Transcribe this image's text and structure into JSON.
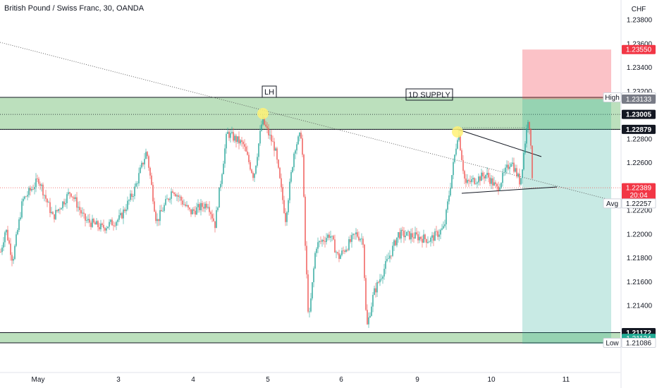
{
  "chart_data": {
    "type": "candlestick",
    "title": "British Pound / Swiss Franc, 30, OANDA",
    "currency": "CHF",
    "y_range": [
      1.2105,
      1.2383
    ],
    "y_ticks": [
      1.214,
      1.216,
      1.218,
      1.22,
      1.222,
      1.224,
      1.226,
      1.228,
      1.232,
      1.234,
      1.236,
      1.238
    ],
    "x_labels": [
      "May",
      "3",
      "4",
      "5",
      "6",
      "9",
      "10",
      "11"
    ],
    "zones": [
      {
        "name": "supply",
        "label": "1D SUPPLY",
        "from": 1.22879,
        "to": 1.23148,
        "color": "#a5d6a7"
      },
      {
        "name": "demand",
        "label": "",
        "from": 1.21086,
        "to": 1.21172,
        "color": "#a5d6a7"
      }
    ],
    "annotations": [
      {
        "name": "lh",
        "text": "LH"
      }
    ],
    "price_labels": [
      {
        "name": "tp",
        "value": 1.2355,
        "text": "1.23550",
        "bg": "#f23645",
        "fg": "#ffffff"
      },
      {
        "name": "high",
        "value": 1.23148,
        "text": "1.23148",
        "tag": "High",
        "bg": "#ffffff",
        "fg": "#131722"
      },
      {
        "name": "entry",
        "value": 1.23133,
        "text": "1.23133",
        "bg": "#787b86",
        "fg": "#ffffff"
      },
      {
        "name": "level1",
        "value": 1.23005,
        "text": "1.23005",
        "bg": "#131722",
        "fg": "#ffffff"
      },
      {
        "name": "level2",
        "value": 1.22879,
        "text": "1.22879",
        "bg": "#131722",
        "fg": "#ffffff"
      },
      {
        "name": "last",
        "value": 1.22389,
        "text": "1.22389",
        "sub": "20:04",
        "bg": "#f23645",
        "fg": "#ffffff"
      },
      {
        "name": "avg",
        "value": 1.22257,
        "text": "1.22257",
        "tag": "Avg",
        "bg": "#ffffff",
        "fg": "#131722"
      },
      {
        "name": "level3",
        "value": 1.21172,
        "text": "1.21172",
        "bg": "#131722",
        "fg": "#ffffff"
      },
      {
        "name": "stop",
        "value": 1.21124,
        "text": "1.21124",
        "bg": "#22ab94",
        "fg": "#ffffff"
      },
      {
        "name": "low",
        "value": 1.21086,
        "text": "1.21086",
        "tag": "Low",
        "bg": "#ffffff",
        "fg": "#131722"
      }
    ],
    "position_box": {
      "entry": 1.23133,
      "target": 1.2355,
      "stop": 1.21124
    },
    "colors": {
      "up": "#26a69a",
      "down": "#ef5350"
    }
  }
}
